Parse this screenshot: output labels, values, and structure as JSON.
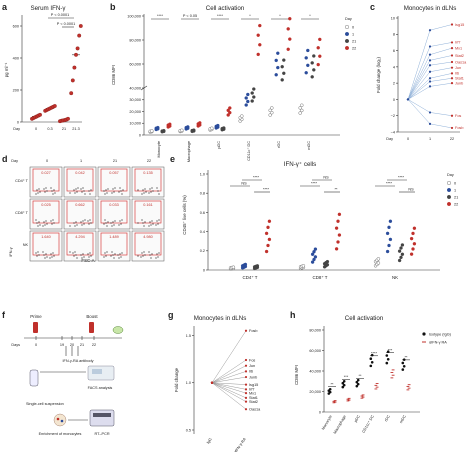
{
  "panels": {
    "a": {
      "letter": "a",
      "title": "Serum IFN-γ",
      "ylabel": "pg ml⁻¹",
      "xticks": [
        "Day",
        "0",
        "0.3",
        "21",
        "21.3"
      ],
      "yticks": [
        "0",
        "200",
        "400",
        "600"
      ],
      "pvals": [
        "P < 0.0001",
        "P < 0.0001"
      ]
    },
    "b": {
      "letter": "b",
      "title": "Cell activation",
      "ylabel": "CD86 MFI",
      "yticks": [
        "0",
        "10,000",
        "20,000",
        "30,000",
        "40,000",
        "60,000",
        "80,000",
        "100,000"
      ],
      "groups": [
        "Monocyte",
        "Macrophage",
        "pDC",
        "CD11c⁺ DC",
        "rDC",
        "mDC"
      ],
      "sig": [
        "****",
        "P < 0.05",
        "****",
        "*",
        "*",
        "*"
      ],
      "legend_title": "Day",
      "legend": [
        "0",
        "1",
        "21",
        "22"
      ]
    },
    "c": {
      "letter": "c",
      "title": "Monocytes in dLNs",
      "ylabel": "Fold change (log₂)",
      "yticks": [
        "−4",
        "−2",
        "0",
        "2",
        "4",
        "6",
        "8",
        "10"
      ],
      "xticks": [
        "Day",
        "0",
        "1",
        "22"
      ],
      "genes": [
        "Isg15",
        "Irf7",
        "Mx1",
        "Stat2",
        "Oas1a",
        "Jun",
        "Il6",
        "Stat1",
        "Junb",
        "Fos",
        "Fosb"
      ]
    },
    "d": {
      "letter": "d",
      "cols": [
        "Day",
        "0",
        "1",
        "21",
        "22"
      ],
      "rows": [
        "CD4⁺ T",
        "CD8⁺ T",
        "NK"
      ],
      "values": [
        [
          "0.027",
          "0.042",
          "0.057",
          "0.135"
        ],
        [
          "0.025",
          "0.662",
          "0.033",
          "0.161"
        ],
        [
          "1.640",
          "4.294",
          "1.489",
          "4.980"
        ]
      ],
      "xaxis": "FSC-A",
      "yaxis": "IFN-γ"
    },
    "e": {
      "letter": "e",
      "title": "IFN-γ⁺ cells",
      "ylabel": "CD45⁺ live cells (%)",
      "yticks": [
        "0",
        "0.2",
        "0.4",
        "0.6",
        "0.8",
        "1.0"
      ],
      "groups": [
        "CD4⁺ T",
        "CD8⁺ T",
        "NK"
      ],
      "sig": [
        "NS",
        "****",
        "****",
        "****",
        "NS",
        "**",
        "****",
        "****",
        "NS"
      ],
      "legend_title": "Day",
      "legend": [
        "0",
        "1",
        "21",
        "22"
      ]
    },
    "f": {
      "letter": "f",
      "prime": "Prime",
      "boost": "Boost",
      "days": [
        "Days",
        "0",
        "19",
        "20",
        "21",
        "22"
      ],
      "treatment": "IFN-γ-RA antibody",
      "facs": "FACS analysis",
      "single_cell": "Single-cell suspension",
      "enrich": "Enrichment of monocytes",
      "rtpcr": "RT–PCR"
    },
    "g": {
      "letter": "g",
      "title": "Monocytes in dLNs",
      "ylabel": "Fold change",
      "yticks": [
        "0.5",
        "1.0",
        "1.5"
      ],
      "xticks": [
        "IgG",
        "αIFN-γ-RA"
      ],
      "genes": [
        "Fosb",
        "Fos",
        "Jun",
        "Il6",
        "Junb",
        "Isg15",
        "Irf7",
        "Mx1",
        "Stat1",
        "Stat2",
        "Oas1a"
      ]
    },
    "h": {
      "letter": "h",
      "title": "Cell activation",
      "ylabel": "CD86 MFI",
      "yticks": [
        "0",
        "20,000",
        "40,000",
        "60,000",
        "80,000"
      ],
      "groups": [
        "Monocyte",
        "Macrophage",
        "pDC",
        "CD11c⁺ DC",
        "rDC",
        "mDC"
      ],
      "sig": [
        "**",
        "***",
        "**",
        "****",
        "***",
        "**"
      ],
      "legend": [
        "Isotype (IgG)",
        "αIFN-γ RA"
      ]
    }
  },
  "colors": {
    "day0": "#ffffff",
    "day1": "#2b4c9b",
    "day21": "#444444",
    "day22": "#c0302b",
    "accent": "#d64040"
  },
  "chart_data": [
    {
      "type": "scatter",
      "panel": "a",
      "categories": [
        "0",
        "0.3",
        "21",
        "21.3"
      ],
      "series": [
        {
          "values": [
            [
              20,
              25,
              30,
              35,
              40,
              45
            ],
            [
              70,
              75,
              80,
              85,
              90,
              95,
              100
            ],
            [
              5,
              8,
              10,
              12,
              15,
              20
            ],
            [
              180,
              260,
              340,
              420,
              460,
              540,
              600
            ]
          ]
        }
      ],
      "ylim": [
        0,
        650
      ]
    },
    {
      "type": "scatter",
      "panel": "b",
      "categories": [
        "Monocyte",
        "Macrophage",
        "pDC",
        "CD11c⁺ DC",
        "rDC",
        "mDC"
      ],
      "series": [
        {
          "name": "0",
          "values": [
            3000,
            3500,
            5000,
            14000,
            20000,
            22000
          ]
        },
        {
          "name": "1",
          "values": [
            5500,
            6000,
            7000,
            30000,
            60000,
            62000
          ]
        },
        {
          "name": "21",
          "values": [
            3200,
            3600,
            5200,
            34000,
            55000,
            58000
          ]
        },
        {
          "name": "22",
          "values": [
            8000,
            9000,
            20000,
            80000,
            85000,
            70000
          ]
        }
      ]
    },
    {
      "type": "line",
      "panel": "c",
      "x": [
        "0",
        "1",
        "22"
      ],
      "series": [
        {
          "name": "Isg15",
          "values": [
            0,
            8.5,
            9.2
          ]
        },
        {
          "name": "Irf7",
          "values": [
            0,
            6.5,
            7.0
          ]
        },
        {
          "name": "Mx1",
          "values": [
            0,
            5.5,
            6.3
          ]
        },
        {
          "name": "Stat2",
          "values": [
            0,
            4.8,
            5.4
          ]
        },
        {
          "name": "Oas1a",
          "values": [
            0,
            4.2,
            4.6
          ]
        },
        {
          "name": "Jun",
          "values": [
            0,
            3.4,
            3.9
          ]
        },
        {
          "name": "Il6",
          "values": [
            0,
            2.6,
            3.2
          ]
        },
        {
          "name": "Stat1",
          "values": [
            0,
            2.2,
            2.6
          ]
        },
        {
          "name": "Junb",
          "values": [
            0,
            1.6,
            2.0
          ]
        },
        {
          "name": "Fos",
          "values": [
            0,
            -1.6,
            -2.0
          ]
        },
        {
          "name": "Fosb",
          "values": [
            0,
            -3.0,
            -3.5
          ]
        }
      ],
      "ylim": [
        -4,
        10
      ]
    },
    {
      "type": "scatter",
      "panel": "e",
      "categories": [
        "CD4⁺ T",
        "CD8⁺ T",
        "NK"
      ],
      "series": [
        {
          "name": "0",
          "values": [
            0.02,
            0.03,
            0.08
          ]
        },
        {
          "name": "1",
          "values": [
            0.04,
            0.15,
            0.35
          ]
        },
        {
          "name": "21",
          "values": [
            0.03,
            0.06,
            0.18
          ]
        },
        {
          "name": "22",
          "values": [
            0.35,
            0.4,
            0.3
          ]
        }
      ],
      "ylim": [
        0,
        1.0
      ]
    },
    {
      "type": "line",
      "panel": "g",
      "x": [
        "IgG",
        "αIFN-γ-RA"
      ],
      "series": [
        {
          "name": "Fosb",
          "values": [
            1.0,
            1.55
          ]
        },
        {
          "name": "Fos",
          "values": [
            1.0,
            1.24
          ]
        },
        {
          "name": "Jun",
          "values": [
            1.0,
            1.18
          ]
        },
        {
          "name": "Il6",
          "values": [
            1.0,
            1.12
          ]
        },
        {
          "name": "Junb",
          "values": [
            1.0,
            1.06
          ]
        },
        {
          "name": "Isg15",
          "values": [
            1.0,
            0.98
          ]
        },
        {
          "name": "Irf7",
          "values": [
            1.0,
            0.93
          ]
        },
        {
          "name": "Mx1",
          "values": [
            1.0,
            0.89
          ]
        },
        {
          "name": "Stat1",
          "values": [
            1.0,
            0.84
          ]
        },
        {
          "name": "Stat2",
          "values": [
            1.0,
            0.8
          ]
        },
        {
          "name": "Oas1a",
          "values": [
            1.0,
            0.72
          ]
        }
      ],
      "ylim": [
        0.5,
        1.6
      ]
    },
    {
      "type": "bar",
      "panel": "h",
      "categories": [
        "Monocyte",
        "Macrophage",
        "pDC",
        "CD11c⁺ DC",
        "rDC",
        "mDC"
      ],
      "series": [
        {
          "name": "Isotype (IgG)",
          "values": [
            20000,
            27000,
            28000,
            50000,
            53000,
            46000
          ]
        },
        {
          "name": "αIFN-γ RA",
          "values": [
            10000,
            12000,
            15000,
            25000,
            37000,
            24000
          ]
        }
      ],
      "ylim": [
        0,
        80000
      ]
    }
  ]
}
